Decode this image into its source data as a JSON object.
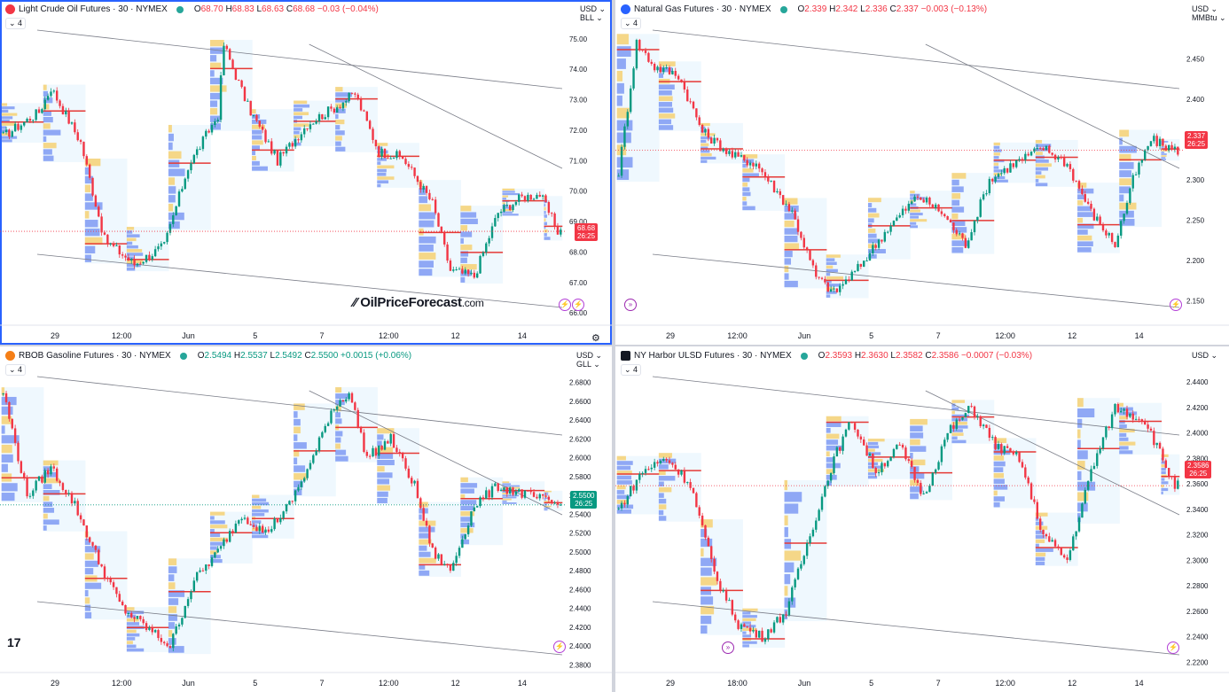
{
  "charts": [
    {
      "id": "cl",
      "symbol": "Light Crude Oil Futures · 30 · NYMEX",
      "icon_color": "#f23645",
      "ohlc": {
        "o": "O",
        "ov": "68.70",
        "h": "H",
        "hv": "68.83",
        "l": "L",
        "lv": "68.63",
        "c": "C",
        "cv": "68.68",
        "chg": "−0.03 (−0.04%)"
      },
      "collapse": "4",
      "currency": "USD",
      "unit": "BLL",
      "last_price": "68.68",
      "countdown": "26:25",
      "tag_color": "#f23645",
      "chart_data": {
        "type": "candlestick",
        "y_ticks": [
          "75.00",
          "74.00",
          "73.00",
          "72.00",
          "71.00",
          "70.00",
          "69.00",
          "68.00",
          "67.00",
          "66.00"
        ],
        "ylim": [
          65.6,
          75.4
        ],
        "x_ticks": [
          "29",
          "12:00",
          "Jun",
          "5",
          "7",
          "12:00",
          "12",
          "14"
        ],
        "key_points": [
          [
            0,
            71.8
          ],
          [
            12,
            72.6
          ],
          [
            16,
            73.4
          ],
          [
            26,
            71.6
          ],
          [
            34,
            68.4
          ],
          [
            44,
            67.6
          ],
          [
            54,
            68.2
          ],
          [
            62,
            70.8
          ],
          [
            72,
            72.5
          ],
          [
            74,
            74.8
          ],
          [
            82,
            72.8
          ],
          [
            92,
            71.0
          ],
          [
            102,
            72.2
          ],
          [
            112,
            72.8
          ],
          [
            118,
            73.2
          ],
          [
            126,
            71.3
          ],
          [
            134,
            71.1
          ],
          [
            144,
            69.6
          ],
          [
            150,
            67.4
          ],
          [
            158,
            67.2
          ],
          [
            166,
            69.3
          ],
          [
            174,
            69.8
          ],
          [
            180,
            69.9
          ],
          [
            186,
            68.7
          ]
        ]
      }
    },
    {
      "id": "ng",
      "symbol": "Natural Gas Futures · 30 · NYMEX",
      "icon_color": "#2962ff",
      "ohlc": {
        "o": "O",
        "ov": "2.339",
        "h": "H",
        "hv": "2.342",
        "l": "L",
        "lv": "2.336",
        "c": "C",
        "cv": "2.337",
        "chg": "−0.003 (−0.13%)"
      },
      "collapse": "4",
      "currency": "USD",
      "unit": "MMBtu",
      "last_price": "2.337",
      "countdown": "26:25",
      "tag_color": "#f23645",
      "chart_data": {
        "type": "candlestick",
        "y_ticks": [
          "2.450",
          "2.400",
          "2.350",
          "2.300",
          "2.250",
          "2.200",
          "2.150"
        ],
        "ylim": [
          2.12,
          2.49
        ],
        "x_ticks": [
          "29",
          "12:00",
          "Jun",
          "5",
          "7",
          "12:00",
          "12",
          "14"
        ],
        "key_points": [
          [
            0,
            2.31
          ],
          [
            6,
            2.47
          ],
          [
            12,
            2.44
          ],
          [
            20,
            2.43
          ],
          [
            28,
            2.36
          ],
          [
            38,
            2.33
          ],
          [
            46,
            2.32
          ],
          [
            52,
            2.29
          ],
          [
            58,
            2.26
          ],
          [
            66,
            2.18
          ],
          [
            72,
            2.16
          ],
          [
            80,
            2.19
          ],
          [
            90,
            2.24
          ],
          [
            100,
            2.28
          ],
          [
            108,
            2.26
          ],
          [
            116,
            2.22
          ],
          [
            124,
            2.3
          ],
          [
            132,
            2.32
          ],
          [
            142,
            2.34
          ],
          [
            150,
            2.32
          ],
          [
            158,
            2.26
          ],
          [
            166,
            2.22
          ],
          [
            172,
            2.3
          ],
          [
            178,
            2.35
          ],
          [
            186,
            2.337
          ]
        ]
      }
    },
    {
      "id": "rb",
      "symbol": "RBOB Gasoline Futures · 30 · NYMEX",
      "icon_color": "#f57f17",
      "ohlc": {
        "o": "O",
        "ov": "2.5494",
        "h": "H",
        "hv": "2.5537",
        "l": "L",
        "lv": "2.5492",
        "c": "C",
        "cv": "2.5500",
        "chg": "+0.0015 (+0.06%)"
      },
      "collapse": "4",
      "currency": "USD",
      "unit": "GLL",
      "last_price": "2.5500",
      "countdown": "26:25",
      "tag_color": "#089981",
      "chart_data": {
        "type": "candlestick",
        "y_ticks": [
          "2.6800",
          "2.6600",
          "2.6400",
          "2.6200",
          "2.6000",
          "2.5800",
          "2.5600",
          "2.5400",
          "2.5200",
          "2.5000",
          "2.4800",
          "2.4600",
          "2.4400",
          "2.4200",
          "2.4000",
          "2.3800"
        ],
        "ylim": [
          2.372,
          2.69
        ],
        "x_ticks": [
          "29",
          "12:00",
          "Jun",
          "5",
          "7",
          "12:00",
          "12",
          "14"
        ],
        "key_points": [
          [
            0,
            2.67
          ],
          [
            8,
            2.56
          ],
          [
            16,
            2.59
          ],
          [
            24,
            2.55
          ],
          [
            32,
            2.49
          ],
          [
            40,
            2.44
          ],
          [
            48,
            2.42
          ],
          [
            56,
            2.4
          ],
          [
            64,
            2.47
          ],
          [
            72,
            2.5
          ],
          [
            80,
            2.54
          ],
          [
            88,
            2.52
          ],
          [
            96,
            2.55
          ],
          [
            104,
            2.6
          ],
          [
            110,
            2.65
          ],
          [
            116,
            2.67
          ],
          [
            122,
            2.6
          ],
          [
            130,
            2.62
          ],
          [
            138,
            2.57
          ],
          [
            144,
            2.5
          ],
          [
            150,
            2.48
          ],
          [
            158,
            2.55
          ],
          [
            166,
            2.57
          ],
          [
            176,
            2.56
          ],
          [
            186,
            2.55
          ]
        ]
      }
    },
    {
      "id": "ho",
      "symbol": "NY Harbor ULSD Futures · 30 · NYMEX",
      "icon_color": "#131722",
      "ohlc": {
        "o": "O",
        "ov": "2.3593",
        "h": "H",
        "hv": "2.3630",
        "l": "L",
        "lv": "2.3582",
        "c": "C",
        "cv": "2.3586",
        "chg": "−0.0007 (−0.03%)"
      },
      "collapse": "4",
      "currency": "USD",
      "unit": "",
      "last_price": "2.3586",
      "countdown": "26:25",
      "tag_color": "#f23645",
      "chart_data": {
        "type": "candlestick",
        "y_ticks": [
          "2.4400",
          "2.4200",
          "2.4000",
          "2.3800",
          "2.3600",
          "2.3400",
          "2.3200",
          "2.3000",
          "2.2800",
          "2.2600",
          "2.2400",
          "2.2200"
        ],
        "ylim": [
          2.212,
          2.447
        ],
        "x_ticks": [
          "29",
          "18:00",
          "Jun",
          "5",
          "7",
          "12:00",
          "12",
          "14"
        ],
        "key_points": [
          [
            0,
            2.34
          ],
          [
            8,
            2.37
          ],
          [
            16,
            2.38
          ],
          [
            24,
            2.36
          ],
          [
            32,
            2.29
          ],
          [
            40,
            2.25
          ],
          [
            48,
            2.24
          ],
          [
            56,
            2.26
          ],
          [
            64,
            2.32
          ],
          [
            72,
            2.38
          ],
          [
            78,
            2.41
          ],
          [
            86,
            2.37
          ],
          [
            94,
            2.39
          ],
          [
            102,
            2.35
          ],
          [
            110,
            2.4
          ],
          [
            118,
            2.42
          ],
          [
            126,
            2.39
          ],
          [
            134,
            2.38
          ],
          [
            142,
            2.32
          ],
          [
            150,
            2.3
          ],
          [
            158,
            2.37
          ],
          [
            166,
            2.42
          ],
          [
            176,
            2.41
          ],
          [
            186,
            2.3586
          ]
        ]
      }
    }
  ],
  "watermark": {
    "brand": "OilPriceForecast",
    "suffix": ".com"
  },
  "tv_logo": "17"
}
